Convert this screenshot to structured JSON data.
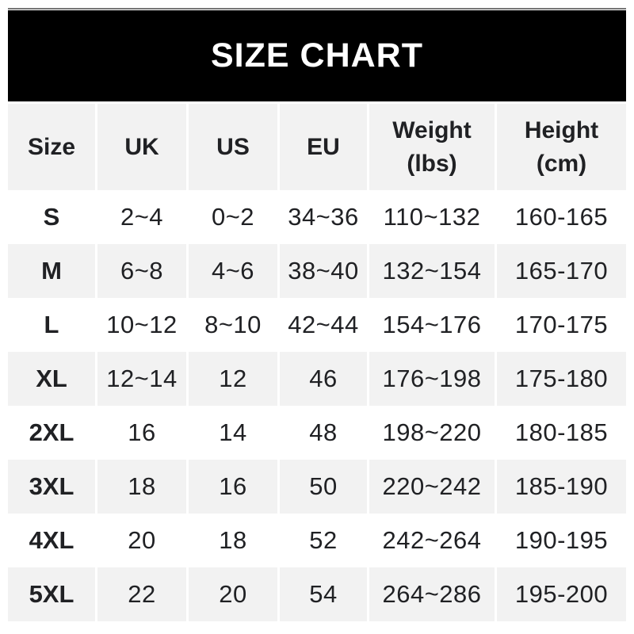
{
  "title": "SIZE CHART",
  "colors": {
    "banner_bg": "#000000",
    "banner_text": "#ffffff",
    "shaded_row": "#f2f2f2",
    "text": "#202124",
    "top_line": "#757575",
    "page_bg": "#ffffff"
  },
  "chart_data": {
    "type": "table",
    "title": "SIZE CHART",
    "columns": [
      {
        "key": "size",
        "label": "Size",
        "sub": ""
      },
      {
        "key": "uk",
        "label": "UK",
        "sub": ""
      },
      {
        "key": "us",
        "label": "US",
        "sub": ""
      },
      {
        "key": "eu",
        "label": "EU",
        "sub": ""
      },
      {
        "key": "weight_lbs",
        "label": "Weight",
        "sub": "(lbs)"
      },
      {
        "key": "height_cm",
        "label": "Height",
        "sub": "(cm)"
      }
    ],
    "rows": [
      [
        "S",
        "2~4",
        "0~2",
        "34~36",
        "110~132",
        "160-165"
      ],
      [
        "M",
        "6~8",
        "4~6",
        "38~40",
        "132~154",
        "165-170"
      ],
      [
        "L",
        "10~12",
        "8~10",
        "42~44",
        "154~176",
        "170-175"
      ],
      [
        "XL",
        "12~14",
        "12",
        "46",
        "176~198",
        "175-180"
      ],
      [
        "2XL",
        "16",
        "14",
        "48",
        "198~220",
        "180-185"
      ],
      [
        "3XL",
        "18",
        "16",
        "50",
        "220~242",
        "185-190"
      ],
      [
        "4XL",
        "20",
        "18",
        "52",
        "242~264",
        "190-195"
      ],
      [
        "5XL",
        "22",
        "20",
        "54",
        "264~286",
        "195-200"
      ]
    ]
  }
}
